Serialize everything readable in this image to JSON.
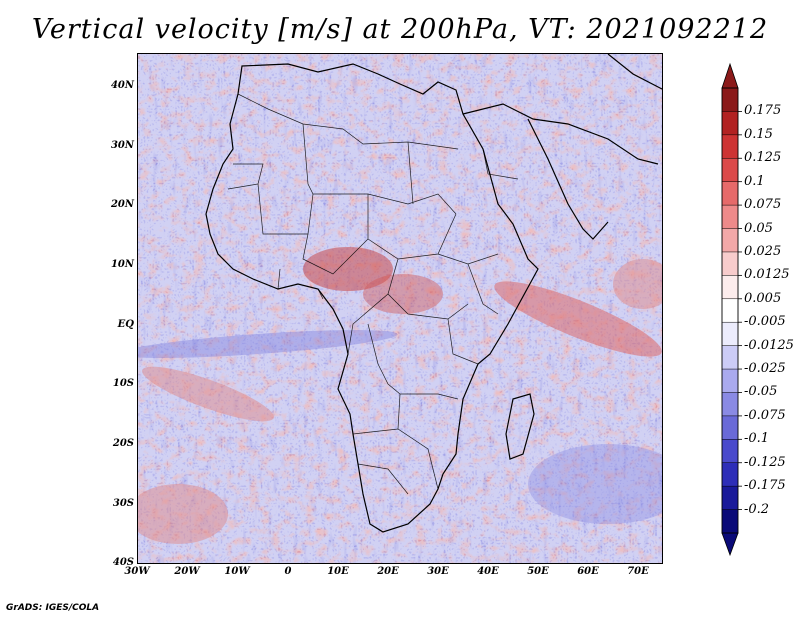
{
  "title": "Vertical velocity [m/s] at 200hPa, VT: 2021092212",
  "credit": "GrADS: IGES/COLA",
  "map": {
    "region": "Africa",
    "variable": "Vertical velocity",
    "level": "200hPa",
    "valid_time": "2021092212",
    "lat_labels": [
      "40N",
      "30N",
      "20N",
      "10N",
      "EQ",
      "10S",
      "20S",
      "30S",
      "40S"
    ],
    "lon_labels": [
      "30W",
      "20W",
      "10W",
      "0",
      "10E",
      "20E",
      "30E",
      "40E",
      "50E",
      "60E",
      "70E"
    ]
  },
  "colorbar": {
    "levels": [
      "0.175",
      "0.15",
      "0.125",
      "0.1",
      "0.075",
      "0.05",
      "0.025",
      "0.0125",
      "0.005",
      "-0.005",
      "-0.0125",
      "-0.025",
      "-0.05",
      "-0.075",
      "-0.1",
      "-0.125",
      "-0.175",
      "-0.2"
    ],
    "colors": [
      "#8b1a1a",
      "#b22222",
      "#cd3333",
      "#dc4a4a",
      "#e66a6a",
      "#ee8a8a",
      "#f3a8a8",
      "#f8cccc",
      "#fcecec",
      "#ffffff",
      "#ececfc",
      "#ccccf6",
      "#aaaaee",
      "#8a8ae4",
      "#6a6ad8",
      "#4a4acc",
      "#2e2eb8",
      "#1a1a9a",
      "#0a0a78"
    ]
  }
}
